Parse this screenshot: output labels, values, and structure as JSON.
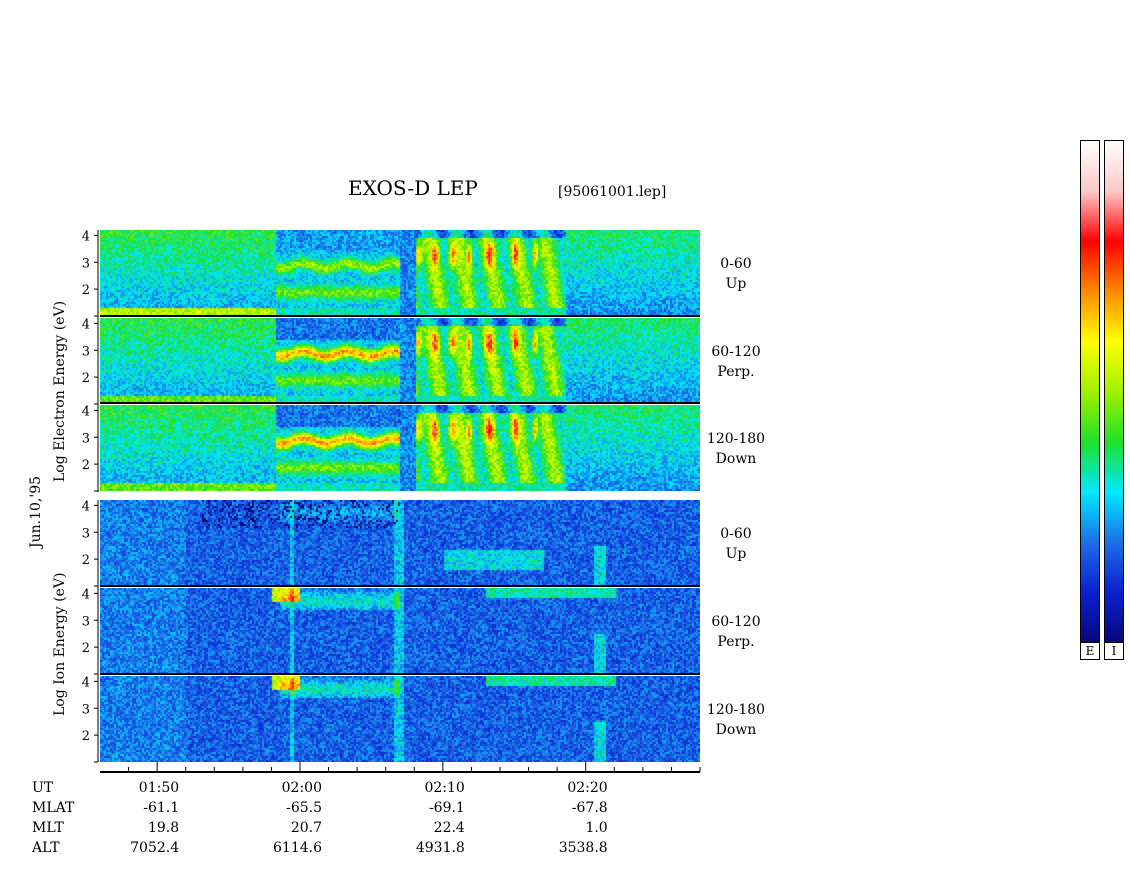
{
  "title": "EXOS-D LEP",
  "file_label": "[95061001.lep]",
  "date_label": "Jun.10,'95",
  "electron_ylabel": "Log  Electron  Energy  (eV)",
  "ion_ylabel": "Log  Ion  Energy  (eV)",
  "colorbar_labels": [
    "E",
    "I"
  ],
  "colors": {
    "colormap": [
      "#08087a",
      "#0a1fd0",
      "#1e6ee8",
      "#00e8ff",
      "#20e02a",
      "#a0f000",
      "#ffff00",
      "#ff8a00",
      "#ff0000",
      "#ffc8c8",
      "#ffffff"
    ]
  },
  "chart_data": {
    "type": "heatmap",
    "title": "EXOS-D LEP",
    "x_axis": {
      "quantity": "UT",
      "range": [
        "01:46",
        "02:28"
      ],
      "major_ticks": [
        "01:50",
        "02:00",
        "02:10",
        "02:20"
      ]
    },
    "y_axis": {
      "label": "Log Energy (eV)",
      "ticks": [
        1,
        2,
        3,
        4
      ],
      "range": [
        1,
        4.2
      ]
    },
    "panels": [
      {
        "species": "Electron",
        "pitch_angle": "0-60",
        "direction": "Up"
      },
      {
        "species": "Electron",
        "pitch_angle": "60-120",
        "direction": "Perp."
      },
      {
        "species": "Electron",
        "pitch_angle": "120-180",
        "direction": "Down"
      },
      {
        "species": "Ion",
        "pitch_angle": "0-60",
        "direction": "Up"
      },
      {
        "species": "Ion",
        "pitch_angle": "60-120",
        "direction": "Perp."
      },
      {
        "species": "Ion",
        "pitch_angle": "120-180",
        "direction": "Down"
      }
    ],
    "ephemeris": {
      "labels": [
        "UT",
        "MLAT",
        "MLT",
        "ALT"
      ],
      "UT": [
        "01:50",
        "02:00",
        "02:10",
        "02:20"
      ],
      "MLAT": [
        "-61.1",
        "-65.5",
        "-69.1",
        "-67.8"
      ],
      "MLT": [
        "19.8",
        "20.7",
        "22.4",
        "1.0"
      ],
      "ALT": [
        "7052.4",
        "6114.6",
        "4931.8",
        "3538.8"
      ]
    },
    "colorbar": {
      "labels": [
        "E",
        "I"
      ],
      "position": "right"
    }
  }
}
